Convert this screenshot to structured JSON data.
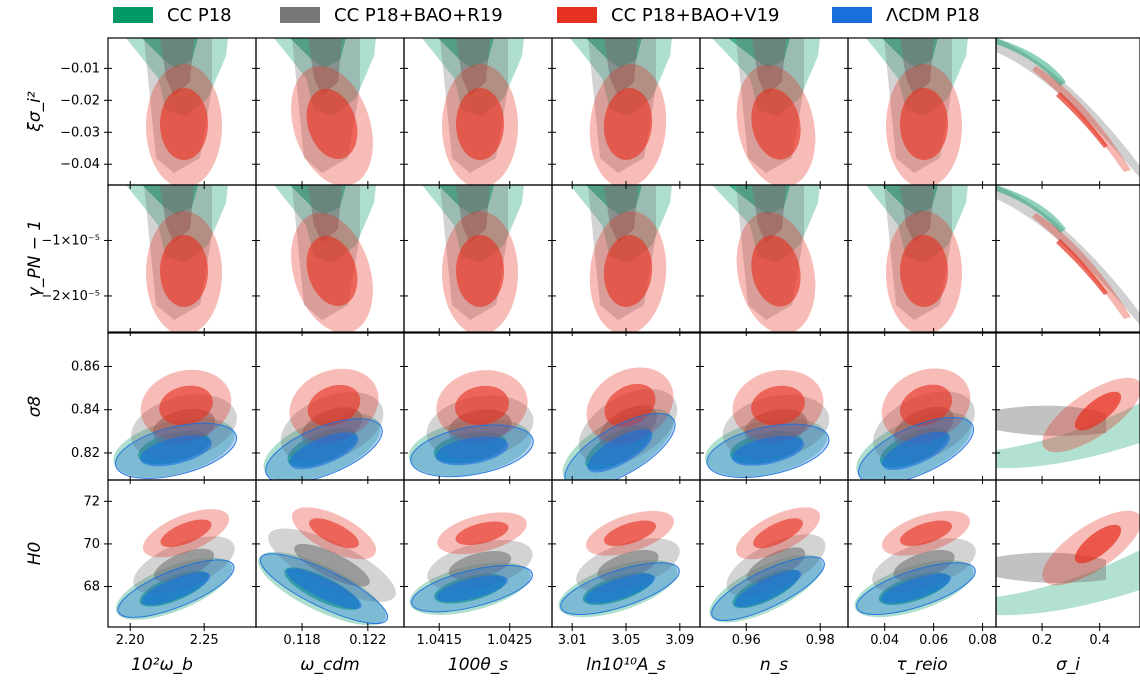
{
  "legend": [
    {
      "label": "CC P18",
      "color": "#009966"
    },
    {
      "label": "CC P18+BAO+R19",
      "color": "#777777"
    },
    {
      "label": "CC P18+BAO+V19",
      "color": "#e63020"
    },
    {
      "label": "ΛCDM P18",
      "color": "#1a6fdd"
    }
  ],
  "chart_data": {
    "type": "triangle-contour",
    "columns": [
      {
        "label": "10²ω_b",
        "ticks": [
          2.2,
          2.25
        ],
        "tick_labels": [
          "2.20",
          "2.25"
        ],
        "range": [
          2.185,
          2.285
        ]
      },
      {
        "label": "ω_cdm",
        "ticks": [
          0.118,
          0.122
        ],
        "tick_labels": [
          "0.118",
          "0.122"
        ],
        "range": [
          0.1152,
          0.1242
        ]
      },
      {
        "label": "100θ_s",
        "ticks": [
          1.0415,
          1.0425
        ],
        "tick_labels": [
          "1.0415",
          "1.0425"
        ],
        "range": [
          1.041,
          1.0431
        ]
      },
      {
        "label": "ln10¹⁰A_s",
        "ticks": [
          3.01,
          3.05,
          3.09
        ],
        "tick_labels": [
          "3.01",
          "3.05",
          "3.09"
        ],
        "range": [
          2.995,
          3.105
        ]
      },
      {
        "label": "n_s",
        "ticks": [
          0.96,
          0.98
        ],
        "tick_labels": [
          "0.96",
          "0.98"
        ],
        "range": [
          0.9475,
          0.9875
        ]
      },
      {
        "label": "τ_reio",
        "ticks": [
          0.04,
          0.06,
          0.08
        ],
        "tick_labels": [
          "0.04",
          "0.06",
          "0.08"
        ],
        "range": [
          0.025,
          0.0855
        ]
      },
      {
        "label": "σ_i",
        "ticks": [
          0.2,
          0.4
        ],
        "tick_labels": [
          "0.2",
          "0.4"
        ],
        "range": [
          0.04,
          0.54
        ]
      }
    ],
    "rows": [
      {
        "label": "ξσ_i²",
        "ticks": [
          -0.01,
          -0.02,
          -0.03,
          -0.04
        ],
        "tick_labels": [
          "−0.01",
          "−0.02",
          "−0.03",
          "−0.04"
        ],
        "range": [
          -0.0465,
          -0.0005
        ]
      },
      {
        "label": "γ_PN − 1",
        "ticks": [
          -1e-05,
          -2e-05
        ],
        "tick_labels": [
          "−1×10⁻⁵",
          "−2×10⁻⁵"
        ],
        "range": [
          -2.65e-05,
          0
        ]
      },
      {
        "label": "σ8",
        "ticks": [
          0.82,
          0.84,
          0.86
        ],
        "tick_labels": [
          "0.82",
          "0.84",
          "0.86"
        ],
        "range": [
          0.8075,
          0.8755
        ]
      },
      {
        "label": "H0",
        "ticks": [
          68,
          70,
          72
        ],
        "tick_labels": [
          "68",
          "70",
          "72"
        ],
        "range": [
          66.1,
          73.0
        ]
      }
    ],
    "series": [
      {
        "name": "CC P18",
        "color": "#009966"
      },
      {
        "name": "CC P18+BAO+R19",
        "color": "#777777"
      },
      {
        "name": "CC P18+BAO+V19",
        "color": "#e63020"
      },
      {
        "name": "ΛCDM P18",
        "color": "#1a6fdd"
      }
    ],
    "contours_2d": {
      "xi": {
        "sig": {
          "CC P18": [
            -0.002,
            0.009
          ],
          "CC P18+BAO+R19": [
            -0.008,
            0.01
          ],
          "CC P18+BAO+V19": [
            -0.024,
            0.009
          ]
        },
        "center": {
          "10²ω_b": {
            "CC P18": 2.236,
            "CC P18+BAO+R19": 2.239,
            "CC P18+BAO+V19": 2.242
          },
          "ω_cdm": {
            "CC P18": 0.1185,
            "CC P18+BAO+R19": 0.1191,
            "CC P18+BAO+V19": 0.1196
          },
          "100θ_s": {
            "CC P18": 1.04195,
            "CC P18+BAO+R19": 1.042,
            "CC P18+BAO+V19": 1.04205
          },
          "ln10¹⁰A_s": {
            "CC P18": 3.045,
            "CC P18+BAO+R19": 3.048,
            "CC P18+BAO+V19": 3.05
          },
          "n_s": {
            "CC P18": 0.964,
            "CC P18+BAO+R19": 0.9665,
            "CC P18+BAO+V19": 0.9695
          },
          "τ_reio": {
            "CC P18": 0.052,
            "CC P18+BAO+R19": 0.0545,
            "CC P18+BAO+V19": 0.056
          }
        }
      },
      "gamma": {
        "sig": {
          "CC P18": [
            -1.2e-06,
            5.5e-06
          ],
          "CC P18+BAO+R19": [
            -4.5e-06,
            6.5e-06
          ],
          "CC P18+BAO+V19": [
            -1.45e-05,
            5.5e-06
          ]
        }
      },
      "sigma8": {
        "center": {
          "CC P18": 0.8225,
          "CC P18+BAO+R19": 0.832,
          "CC P18+BAO+V19": 0.842,
          "ΛCDM P18": 0.821
        },
        "sig": {
          "CC P18": 0.0065,
          "CC P18+BAO+R19": 0.0075,
          "CC P18+BAO+V19": 0.0085,
          "ΛCDM P18": 0.0058
        }
      },
      "H0": {
        "center": {
          "CC P18": 67.9,
          "CC P18+BAO+R19": 69.0,
          "CC P18+BAO+V19": 70.5,
          "ΛCDM P18": 67.9
        },
        "sig": {
          "CC P18": 0.55,
          "CC P18+BAO+R19": 0.55,
          "CC P18+BAO+V19": 0.45,
          "ΛCDM P18": 0.45
        }
      }
    }
  }
}
